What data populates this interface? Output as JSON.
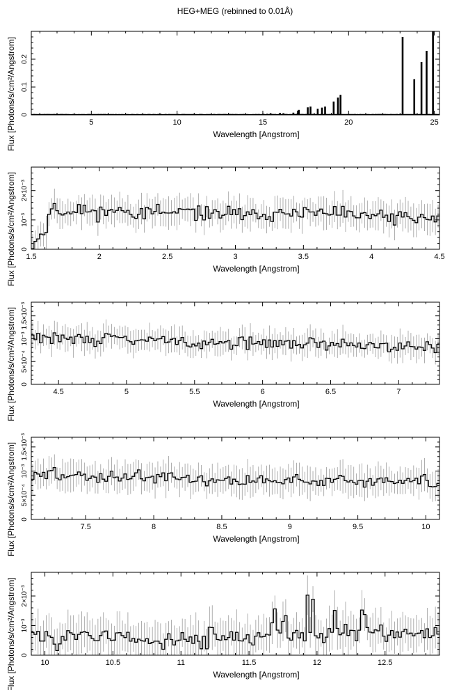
{
  "figure": {
    "title": "HEG+MEG (rebinned to 0.01Å)"
  },
  "chart_data": [
    {
      "type": "line",
      "style": "step-histogram",
      "xlabel": "Wavelength [Angstrom]",
      "ylabel": "Flux [Photons/s/cm²/Angstrom]",
      "xlim": [
        1.5,
        25.3
      ],
      "ylim": [
        0,
        0.3
      ],
      "xticks": [
        5,
        10,
        15,
        20,
        25
      ],
      "xtick_labels": [
        "5",
        "10",
        "15",
        "20",
        "25"
      ],
      "yticks": [
        0,
        0.1,
        0.2
      ],
      "ytick_labels": [
        "0",
        "0.1",
        "0.2"
      ],
      "baseline": 0.0015,
      "lines": [
        {
          "x": 15.01,
          "y": 0.004
        },
        {
          "x": 15.26,
          "y": 0.004
        },
        {
          "x": 15.45,
          "y": 0.006
        },
        {
          "x": 16.0,
          "y": 0.007
        },
        {
          "x": 16.2,
          "y": 0.006
        },
        {
          "x": 16.78,
          "y": 0.008
        },
        {
          "x": 17.05,
          "y": 0.015
        },
        {
          "x": 17.1,
          "y": 0.018
        },
        {
          "x": 17.62,
          "y": 0.027
        },
        {
          "x": 17.78,
          "y": 0.03
        },
        {
          "x": 18.2,
          "y": 0.022
        },
        {
          "x": 18.45,
          "y": 0.026
        },
        {
          "x": 18.63,
          "y": 0.03
        },
        {
          "x": 19.13,
          "y": 0.048
        },
        {
          "x": 19.38,
          "y": 0.062
        },
        {
          "x": 19.53,
          "y": 0.072
        },
        {
          "x": 23.15,
          "y": 0.28
        },
        {
          "x": 23.83,
          "y": 0.128
        },
        {
          "x": 24.25,
          "y": 0.19
        },
        {
          "x": 24.55,
          "y": 0.23
        },
        {
          "x": 24.92,
          "y": 0.3
        }
      ]
    },
    {
      "type": "line",
      "style": "step-histogram-with-errorbars",
      "xlabel": "Wavelength [Angstrom]",
      "ylabel": "Flux [Photons/s/cm²/Angstrom]",
      "xlim": [
        1.5,
        4.5
      ],
      "ylim": [
        0,
        0.0028
      ],
      "xticks": [
        1.5,
        2,
        2.5,
        3,
        3.5,
        4,
        4.5
      ],
      "xtick_labels": [
        "1.5",
        "2",
        "2.5",
        "3",
        "3.5",
        "4",
        "4.5"
      ],
      "yticks": [
        0,
        0.001,
        0.002
      ],
      "ytick_labels": [
        "0",
        "10⁻³",
        "2×10⁻³"
      ],
      "bin_width": 0.02,
      "anchors": [
        [
          1.5,
          0.0002
        ],
        [
          1.6,
          0.0006
        ],
        [
          1.65,
          0.0014
        ],
        [
          1.75,
          0.0013
        ],
        [
          2.0,
          0.0013
        ],
        [
          2.5,
          0.00125
        ],
        [
          3.0,
          0.00118
        ],
        [
          3.5,
          0.00122
        ],
        [
          4.0,
          0.00112
        ],
        [
          4.5,
          0.00105
        ]
      ],
      "noise": 0.00024,
      "errbar": 0.00045,
      "seed": 11
    },
    {
      "type": "line",
      "style": "step-histogram-with-errorbars",
      "xlabel": "Wavelength [Angstrom]",
      "ylabel": "Flux [Photons/s/cm²/Angstrom]",
      "xlim": [
        4.3,
        7.3
      ],
      "ylim": [
        0,
        0.0018
      ],
      "xticks": [
        4.5,
        5,
        5.5,
        6,
        6.5,
        7
      ],
      "xtick_labels": [
        "4.5",
        "5",
        "5.5",
        "6",
        "6.5",
        "7"
      ],
      "yticks": [
        0,
        0.0005,
        0.001,
        0.0015
      ],
      "ytick_labels": [
        "0",
        "5×10⁻⁴",
        "10⁻³",
        "1.5×10⁻³"
      ],
      "bin_width": 0.02,
      "anchors": [
        [
          4.3,
          0.00102
        ],
        [
          5.0,
          0.00098
        ],
        [
          5.5,
          0.00092
        ],
        [
          6.0,
          0.0009
        ],
        [
          6.5,
          0.00088
        ],
        [
          7.0,
          0.00085
        ],
        [
          7.3,
          0.00082
        ]
      ],
      "noise": 0.00012,
      "errbar": 0.00025,
      "seed": 29
    },
    {
      "type": "line",
      "style": "step-histogram-with-errorbars",
      "xlabel": "Wavelength [Angstrom]",
      "ylabel": "Flux [Photons/s/cm²/Angstrom]",
      "xlim": [
        7.1,
        10.1
      ],
      "ylim": [
        0,
        0.0017
      ],
      "xticks": [
        7.5,
        8,
        8.5,
        9,
        9.5,
        10
      ],
      "xtick_labels": [
        "7.5",
        "8",
        "8.5",
        "9",
        "9.5",
        "10"
      ],
      "yticks": [
        0,
        0.0005,
        0.001,
        0.0015
      ],
      "ytick_labels": [
        "0",
        "5×10⁻⁴",
        "10⁻³",
        "1.5×10⁻³"
      ],
      "bin_width": 0.02,
      "anchors": [
        [
          7.1,
          0.00092
        ],
        [
          7.5,
          0.0009
        ],
        [
          8.0,
          0.00088
        ],
        [
          8.5,
          0.0008
        ],
        [
          9.0,
          0.00082
        ],
        [
          9.5,
          0.0008
        ],
        [
          10.1,
          0.00078
        ]
      ],
      "noise": 0.00013,
      "errbar": 0.00028,
      "seed": 47
    },
    {
      "type": "line",
      "style": "step-histogram-with-errorbars",
      "xlabel": "Wavelength [Angstrom]",
      "ylabel": "Flux [Photons/s/cm²/Angstrom]",
      "xlim": [
        9.9,
        12.9
      ],
      "ylim": [
        0,
        0.0028
      ],
      "xticks": [
        10,
        10.5,
        11,
        11.5,
        12,
        12.5
      ],
      "xtick_labels": [
        "10",
        "10.5",
        "11",
        "11.5",
        "12",
        "12.5"
      ],
      "yticks": [
        0,
        0.001,
        0.002
      ],
      "ytick_labels": [
        "0",
        "10⁻³",
        "2×10⁻³"
      ],
      "bin_width": 0.02,
      "anchors": [
        [
          9.9,
          0.00065
        ],
        [
          10.5,
          0.0006
        ],
        [
          11.0,
          0.00055
        ],
        [
          11.5,
          0.0006
        ],
        [
          12.0,
          0.0007
        ],
        [
          12.5,
          0.00075
        ],
        [
          12.9,
          0.00072
        ]
      ],
      "noise": 0.0003,
      "errbar": 0.0006,
      "peaks": [
        [
          11.93,
          0.0019
        ],
        [
          11.97,
          0.0018
        ],
        [
          12.13,
          0.0015
        ],
        [
          12.34,
          0.0016
        ],
        [
          11.68,
          0.0012
        ],
        [
          11.76,
          0.0013
        ],
        [
          11.22,
          0.0011
        ]
      ],
      "seed": 83
    }
  ]
}
